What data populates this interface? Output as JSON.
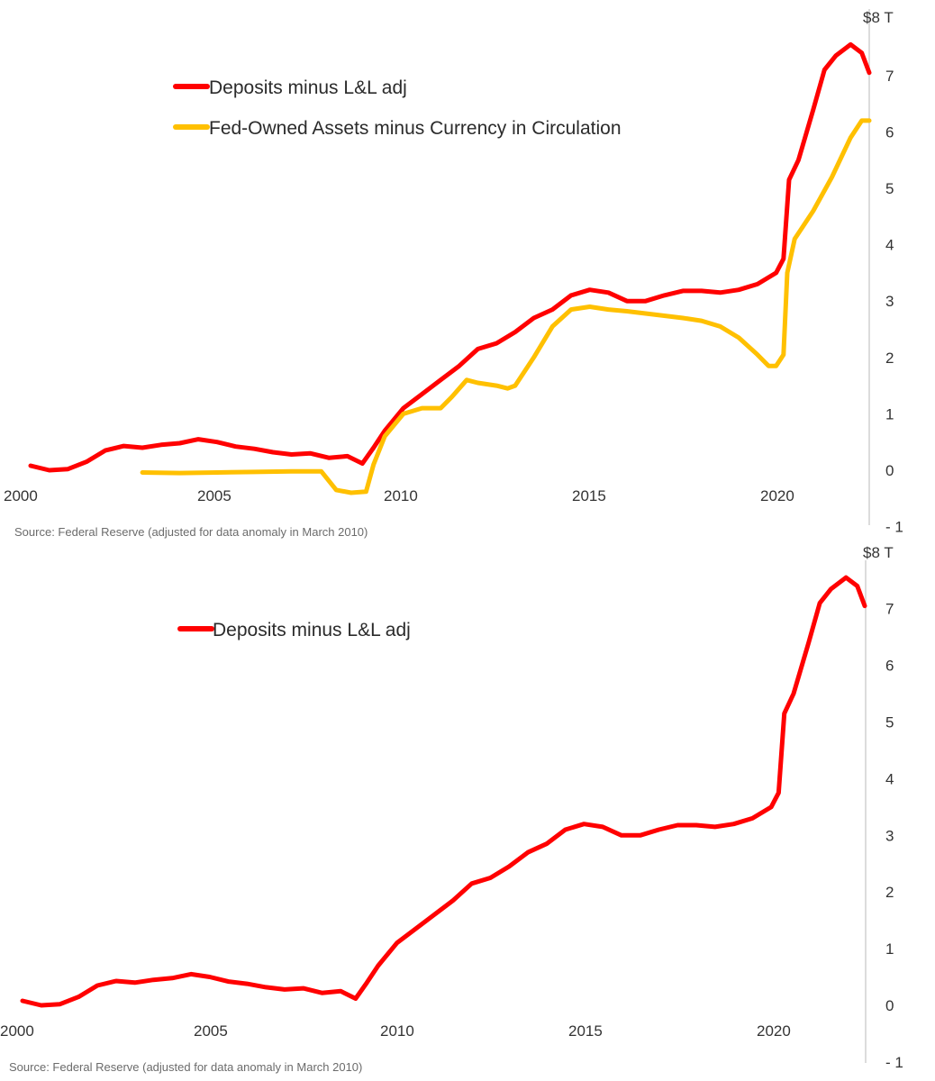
{
  "chart_data": [
    {
      "type": "line",
      "source": "Source: Federal Reserve (adjusted for data anomaly in March 2010)",
      "x_ticks": [
        "2000",
        "2005",
        "2010",
        "2015",
        "2020"
      ],
      "y_ticks": [
        "$8 T",
        "7",
        "6",
        "5",
        "4",
        "3",
        "2",
        "1",
        "0",
        "- 1"
      ],
      "xlim": [
        2000,
        2022.5
      ],
      "ylim": [
        -1,
        8
      ],
      "series": [
        {
          "name": "Deposits minus L&L adj",
          "color": "#ff0000",
          "x": [
            2000.0,
            2000.5,
            2001.0,
            2001.5,
            2002.0,
            2002.5,
            2003.0,
            2003.5,
            2004.0,
            2004.5,
            2005.0,
            2005.5,
            2006.0,
            2006.5,
            2007.0,
            2007.5,
            2008.0,
            2008.5,
            2008.9,
            2009.2,
            2009.5,
            2010.0,
            2010.5,
            2011.0,
            2011.5,
            2012.0,
            2012.5,
            2013.0,
            2013.5,
            2014.0,
            2014.5,
            2015.0,
            2015.5,
            2016.0,
            2016.5,
            2017.0,
            2017.5,
            2018.0,
            2018.5,
            2019.0,
            2019.5,
            2020.0,
            2020.2,
            2020.35,
            2020.6,
            2021.0,
            2021.3,
            2021.6,
            2022.0,
            2022.3,
            2022.5
          ],
          "y": [
            0.08,
            0.0,
            0.02,
            0.15,
            0.35,
            0.43,
            0.4,
            0.45,
            0.48,
            0.55,
            0.5,
            0.42,
            0.38,
            0.32,
            0.28,
            0.3,
            0.22,
            0.25,
            0.12,
            0.4,
            0.7,
            1.1,
            1.35,
            1.6,
            1.85,
            2.15,
            2.25,
            2.45,
            2.7,
            2.85,
            3.1,
            3.2,
            3.15,
            3.0,
            3.0,
            3.1,
            3.18,
            3.18,
            3.15,
            3.2,
            3.3,
            3.5,
            3.75,
            5.15,
            5.5,
            6.4,
            7.1,
            7.35,
            7.55,
            7.4,
            7.05
          ]
        },
        {
          "name": "Fed-Owned Assets minus Currency in Circulation",
          "color": "#ffc000",
          "x": [
            2003.0,
            2004.0,
            2005.0,
            2006.0,
            2007.0,
            2007.8,
            2008.2,
            2008.6,
            2009.0,
            2009.2,
            2009.5,
            2010.0,
            2010.5,
            2011.0,
            2011.3,
            2011.7,
            2012.0,
            2012.5,
            2012.8,
            2013.0,
            2013.5,
            2014.0,
            2014.5,
            2015.0,
            2015.5,
            2016.0,
            2016.5,
            2017.0,
            2017.5,
            2018.0,
            2018.5,
            2019.0,
            2019.5,
            2019.8,
            2020.0,
            2020.2,
            2020.3,
            2020.5,
            2021.0,
            2021.5,
            2022.0,
            2022.3,
            2022.5
          ],
          "y": [
            -0.04,
            -0.05,
            -0.04,
            -0.03,
            -0.02,
            -0.02,
            -0.35,
            -0.4,
            -0.38,
            0.1,
            0.6,
            1.0,
            1.1,
            1.1,
            1.3,
            1.6,
            1.55,
            1.5,
            1.45,
            1.5,
            2.0,
            2.55,
            2.85,
            2.9,
            2.85,
            2.82,
            2.78,
            2.74,
            2.7,
            2.65,
            2.55,
            2.35,
            2.05,
            1.85,
            1.85,
            2.05,
            3.5,
            4.1,
            4.6,
            5.2,
            5.9,
            6.2,
            6.2
          ]
        }
      ]
    },
    {
      "type": "line",
      "source": "Source: Federal Reserve (adjusted for data anomaly in March 2010)",
      "x_ticks": [
        "2000",
        "2005",
        "2010",
        "2015",
        "2020"
      ],
      "y_ticks": [
        "$8 T",
        "7",
        "6",
        "5",
        "4",
        "3",
        "2",
        "1",
        "0",
        "- 1"
      ],
      "xlim": [
        2000,
        2022.5
      ],
      "ylim": [
        -1,
        8
      ],
      "series": [
        {
          "name": "Deposits minus L&L adj",
          "color": "#ff0000",
          "x": [
            2000.0,
            2000.5,
            2001.0,
            2001.5,
            2002.0,
            2002.5,
            2003.0,
            2003.5,
            2004.0,
            2004.5,
            2005.0,
            2005.5,
            2006.0,
            2006.5,
            2007.0,
            2007.5,
            2008.0,
            2008.5,
            2008.9,
            2009.2,
            2009.5,
            2010.0,
            2010.5,
            2011.0,
            2011.5,
            2012.0,
            2012.5,
            2013.0,
            2013.5,
            2014.0,
            2014.5,
            2015.0,
            2015.5,
            2016.0,
            2016.5,
            2017.0,
            2017.5,
            2018.0,
            2018.5,
            2019.0,
            2019.5,
            2020.0,
            2020.2,
            2020.35,
            2020.6,
            2021.0,
            2021.3,
            2021.6,
            2022.0,
            2022.3,
            2022.5
          ],
          "y": [
            0.08,
            0.0,
            0.02,
            0.15,
            0.35,
            0.43,
            0.4,
            0.45,
            0.48,
            0.55,
            0.5,
            0.42,
            0.38,
            0.32,
            0.28,
            0.3,
            0.22,
            0.25,
            0.12,
            0.4,
            0.7,
            1.1,
            1.35,
            1.6,
            1.85,
            2.15,
            2.25,
            2.45,
            2.7,
            2.85,
            3.1,
            3.2,
            3.15,
            3.0,
            3.0,
            3.1,
            3.18,
            3.18,
            3.15,
            3.2,
            3.3,
            3.5,
            3.75,
            5.15,
            5.5,
            6.4,
            7.1,
            7.35,
            7.55,
            7.4,
            7.05
          ]
        }
      ]
    }
  ]
}
